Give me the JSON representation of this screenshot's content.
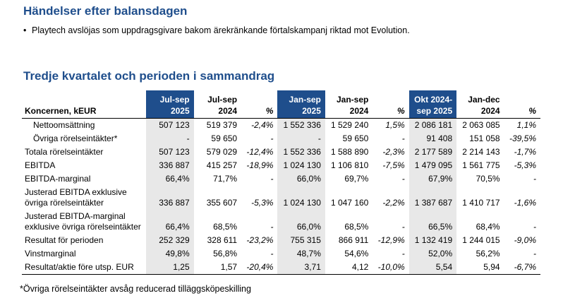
{
  "events": {
    "heading": "Händelser efter balansdagen",
    "bullet_symbol": "•",
    "bullets": [
      "Playtech avslöjas som uppdragsgivare bakom ärekränkande förtalskampanj riktad mot Evolution."
    ]
  },
  "summary": {
    "heading": "Tredje kvartalet och perioden i sammandrag",
    "columns": [
      {
        "l1": "",
        "l2": "Koncernen, kEUR"
      },
      {
        "l1": "Jul-sep",
        "l2": "2025"
      },
      {
        "l1": "Jul-sep",
        "l2": "2024"
      },
      {
        "l1": "",
        "l2": "%"
      },
      {
        "l1": "Jan-sep",
        "l2": "2025"
      },
      {
        "l1": "Jan-sep",
        "l2": "2024"
      },
      {
        "l1": "",
        "l2": "%"
      },
      {
        "l1": "Okt 2024-",
        "l2": "sep 2025"
      },
      {
        "l1": "Jan-dec",
        "l2": "2024"
      },
      {
        "l1": "",
        "l2": "%"
      }
    ],
    "rows": [
      {
        "label": "Nettoomsättning",
        "v": [
          "507 123",
          "519 379",
          "-2,4%",
          "1 552 336",
          "1 529 240",
          "1,5%",
          "2 086 181",
          "2 063 085",
          "1,1%"
        ]
      },
      {
        "label": "Övriga rörelseintäkter*",
        "v": [
          "-",
          "59 650",
          "-",
          "-",
          "59 650",
          "-",
          "91 408",
          "151 058",
          "-39,5%"
        ]
      },
      {
        "label": "Totala rörelseintäkter",
        "v": [
          "507 123",
          "579 029",
          "-12,4%",
          "1 552 336",
          "1 588 890",
          "-2,3%",
          "2 177 589",
          "2 214 143",
          "-1,7%"
        ]
      },
      {
        "label": "EBITDA",
        "v": [
          "336 887",
          "415 257",
          "-18,9%",
          "1 024 130",
          "1 106 810",
          "-7,5%",
          "1 479 095",
          "1 561 775",
          "-5,3%"
        ]
      },
      {
        "label": "EBITDA-marginal",
        "v": [
          "66,4%",
          "71,7%",
          "-",
          "66,0%",
          "69,7%",
          "-",
          "67,9%",
          "70,5%",
          "-"
        ]
      },
      {
        "label": "Justerad EBITDA exklusive övriga rörelseintäkter",
        "v": [
          "336 887",
          "355 607",
          "-5,3%",
          "1 024 130",
          "1 047 160",
          "-2,2%",
          "1 387 687",
          "1 410 717",
          "-1,6%"
        ]
      },
      {
        "label": "Justerad EBITDA-marginal exklusive övriga rörelseintäkter",
        "v": [
          "66,4%",
          "68,5%",
          "-",
          "66,0%",
          "68,5%",
          "-",
          "66,5%",
          "68,4%",
          "-"
        ]
      },
      {
        "label": "Resultat för perioden",
        "v": [
          "252 329",
          "328 611",
          "-23,2%",
          "755 315",
          "866 911",
          "-12,9%",
          "1 132 419",
          "1 244 015",
          "-9,0%"
        ]
      },
      {
        "label": "Vinstmarginal",
        "v": [
          "49,8%",
          "56,8%",
          "-",
          "48,7%",
          "54,6%",
          "-",
          "52,0%",
          "56,2%",
          "-"
        ]
      },
      {
        "label": "Resultat/aktie före utsp. EUR",
        "v": [
          "1,25",
          "1,57",
          "-20,4%",
          "3,71",
          "4,12",
          "-10,0%",
          "5,54",
          "5,94",
          "-6,7%"
        ]
      }
    ],
    "footnote": "*Övriga rörelseintäkter avsåg reducerad tilläggsköpeskilling"
  },
  "colors": {
    "accent": "#1f4e8c",
    "highlight_cell": "#e8e8e8"
  }
}
